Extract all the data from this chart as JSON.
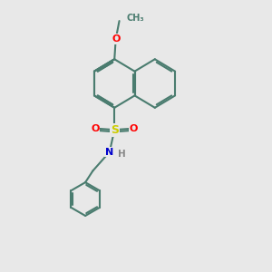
{
  "bg_color": "#e8e8e8",
  "bond_color": "#4a7c6f",
  "bond_width": 1.5,
  "S_color": "#cccc00",
  "O_color": "#ff0000",
  "N_color": "#0000cc",
  "H_color": "#888888",
  "figsize": [
    3.0,
    3.0
  ],
  "dpi": 100,
  "xlim": [
    0,
    10
  ],
  "ylim": [
    0,
    10
  ]
}
